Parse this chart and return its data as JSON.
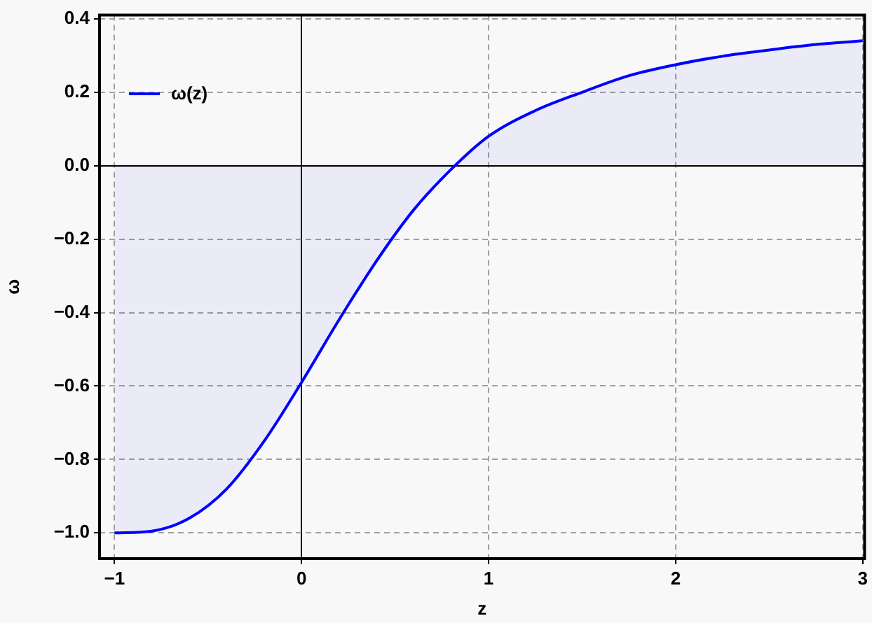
{
  "chart_data": {
    "type": "area",
    "xlabel": "z",
    "ylabel": "ω",
    "x": [
      -1,
      -0.8,
      -0.6,
      -0.4,
      -0.2,
      0,
      0.2,
      0.4,
      0.6,
      0.8,
      1.0,
      1.25,
      1.5,
      1.75,
      2.0,
      2.25,
      2.5,
      2.75,
      3.0
    ],
    "series": [
      {
        "name": "ω(z)",
        "color": "#0000ff",
        "values": [
          -1.0,
          -0.995,
          -0.96,
          -0.88,
          -0.75,
          -0.59,
          -0.42,
          -0.26,
          -0.12,
          -0.01,
          0.08,
          0.15,
          0.2,
          0.245,
          0.275,
          0.298,
          0.315,
          0.33,
          0.34
        ]
      }
    ],
    "xlim": [
      -1.08,
      3.01
    ],
    "xticks": [
      {
        "value": -1,
        "label": "−1"
      },
      0,
      1,
      2,
      3
    ],
    "ylim": [
      -1.07,
      0.41
    ],
    "yticks": [
      {
        "value": -1,
        "label": "−1.0"
      },
      {
        "value": -0.8,
        "label": "−0.8"
      },
      {
        "value": -0.6,
        "label": "−0.6"
      },
      {
        "value": -0.4,
        "label": "−0.4"
      },
      {
        "value": -0.2,
        "label": "−0.2"
      },
      {
        "value": 0,
        "label": "0.0"
      },
      0.2,
      0.4
    ],
    "grid": true,
    "legend": "top left",
    "line_style": "solid",
    "marker": "none"
  }
}
